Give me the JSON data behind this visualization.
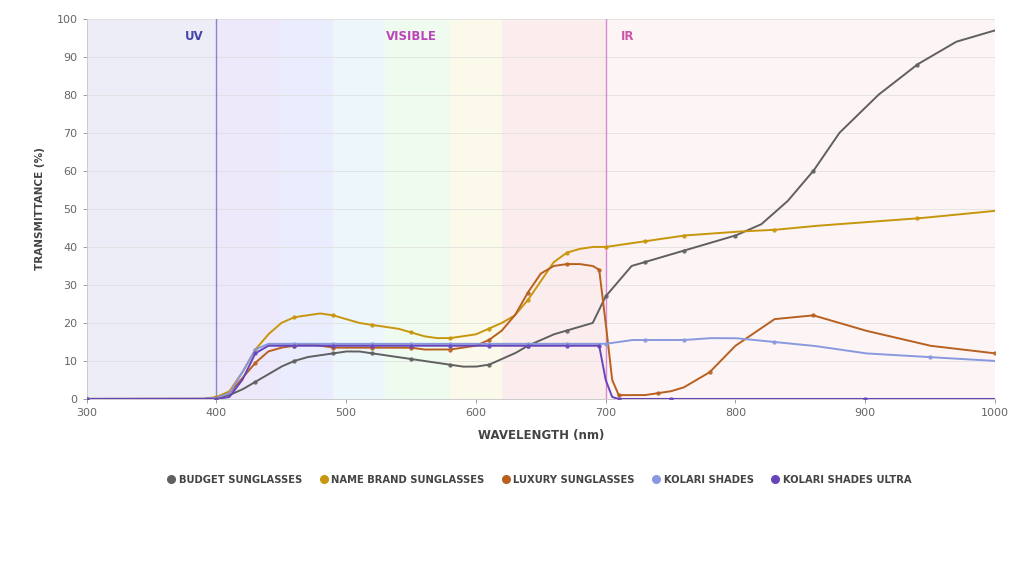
{
  "title": "",
  "xlabel": "WAVELENGTH (nm)",
  "ylabel": "TRANSMITTANCE (%)",
  "xlim": [
    300,
    1000
  ],
  "ylim": [
    0,
    100
  ],
  "uv_line_x": 400,
  "vis_line_x": 700,
  "uv_label": "UV",
  "vis_label": "VISIBLE",
  "ir_label": "IR",
  "uv_label_color": "#4444aa",
  "vis_label_color": "#bb44bb",
  "ir_label_color": "#cc55aa",
  "background_color": "#ffffff",
  "series": {
    "budget": {
      "label": "BUDGET SUNGLASSES",
      "color": "#606060",
      "x": [
        300,
        370,
        390,
        400,
        410,
        420,
        430,
        440,
        450,
        460,
        470,
        480,
        490,
        500,
        510,
        520,
        530,
        540,
        550,
        560,
        570,
        580,
        590,
        600,
        610,
        620,
        630,
        640,
        650,
        660,
        670,
        680,
        690,
        700,
        710,
        720,
        730,
        740,
        750,
        760,
        770,
        780,
        800,
        820,
        840,
        860,
        880,
        910,
        940,
        970,
        1000
      ],
      "y": [
        0,
        0,
        0,
        0.3,
        1.0,
        2.5,
        4.5,
        6.5,
        8.5,
        10,
        11,
        11.5,
        12,
        12.5,
        12.5,
        12,
        11.5,
        11,
        10.5,
        10,
        9.5,
        9,
        8.5,
        8.5,
        9,
        10.5,
        12,
        14,
        15.5,
        17,
        18,
        19,
        20,
        27,
        31,
        35,
        36,
        37,
        38,
        39,
        40,
        41,
        43,
        46,
        52,
        60,
        70,
        80,
        88,
        94,
        97
      ]
    },
    "name_brand": {
      "label": "NAME BRAND SUNGLASSES",
      "color": "#c8960c",
      "x": [
        300,
        370,
        390,
        400,
        410,
        420,
        430,
        440,
        450,
        460,
        470,
        480,
        490,
        500,
        510,
        520,
        530,
        540,
        550,
        560,
        570,
        580,
        590,
        600,
        610,
        620,
        630,
        640,
        650,
        660,
        670,
        680,
        690,
        700,
        710,
        720,
        730,
        740,
        750,
        760,
        780,
        800,
        830,
        860,
        900,
        940,
        970,
        1000
      ],
      "y": [
        0,
        0,
        0,
        0.5,
        2,
        7,
        13,
        17,
        20,
        21.5,
        22,
        22.5,
        22,
        21,
        20,
        19.5,
        19,
        18.5,
        17.5,
        16.5,
        16,
        16,
        16.5,
        17,
        18.5,
        20,
        22,
        26,
        31,
        36,
        38.5,
        39.5,
        40,
        40,
        40.5,
        41,
        41.5,
        42,
        42.5,
        43,
        43.5,
        44,
        44.5,
        45.5,
        46.5,
        47.5,
        48.5,
        49.5
      ]
    },
    "luxury": {
      "label": "LUXURY SUNGLASSES",
      "color": "#b86020",
      "x": [
        300,
        370,
        390,
        400,
        410,
        420,
        430,
        440,
        450,
        460,
        470,
        480,
        490,
        500,
        510,
        520,
        530,
        540,
        550,
        560,
        570,
        580,
        590,
        600,
        610,
        620,
        630,
        640,
        650,
        660,
        670,
        680,
        690,
        695,
        700,
        705,
        710,
        720,
        730,
        740,
        750,
        760,
        780,
        800,
        830,
        860,
        900,
        950,
        1000
      ],
      "y": [
        0,
        0,
        0,
        0.3,
        1.5,
        5.5,
        9.5,
        12.5,
        13.5,
        14,
        14.5,
        14,
        13.5,
        13.5,
        13.5,
        13.5,
        13.5,
        13.5,
        13.5,
        13,
        13,
        13,
        13.5,
        14,
        15.5,
        18,
        22,
        28,
        33,
        35,
        35.5,
        35.5,
        35,
        34,
        20,
        5,
        1,
        1,
        1,
        1.5,
        2,
        3,
        7,
        14,
        21,
        22,
        18,
        14,
        12
      ]
    },
    "kolari_shades": {
      "label": "KOLARI SHADES",
      "color": "#8899dd",
      "x": [
        300,
        370,
        390,
        400,
        410,
        420,
        430,
        440,
        450,
        460,
        470,
        480,
        490,
        500,
        510,
        520,
        530,
        540,
        550,
        560,
        570,
        580,
        590,
        600,
        610,
        620,
        630,
        640,
        650,
        660,
        670,
        680,
        690,
        700,
        710,
        720,
        730,
        740,
        750,
        760,
        780,
        800,
        830,
        860,
        900,
        950,
        1000
      ],
      "y": [
        0,
        0,
        0,
        0.3,
        1.5,
        7,
        13,
        14.5,
        14.5,
        14.5,
        14.5,
        14.5,
        14.5,
        14.5,
        14.5,
        14.5,
        14.5,
        14.5,
        14.5,
        14.5,
        14.5,
        14.5,
        14.5,
        14.5,
        14.5,
        14.5,
        14.5,
        14.5,
        14.5,
        14.5,
        14.5,
        14.5,
        14.5,
        14.5,
        15,
        15.5,
        15.5,
        15.5,
        15.5,
        15.5,
        16,
        16,
        15,
        14,
        12,
        11,
        10
      ]
    },
    "kolari_ultra": {
      "label": "KOLARI SHADES ULTRA",
      "color": "#6644bb",
      "x": [
        300,
        370,
        390,
        400,
        410,
        420,
        430,
        440,
        450,
        460,
        470,
        480,
        490,
        500,
        510,
        520,
        530,
        540,
        550,
        560,
        570,
        580,
        590,
        600,
        610,
        620,
        630,
        640,
        650,
        660,
        670,
        680,
        690,
        695,
        700,
        705,
        710,
        720,
        730,
        750,
        800,
        850,
        900,
        950,
        1000
      ],
      "y": [
        0,
        0,
        0,
        0,
        0.5,
        5,
        12,
        14,
        14,
        14,
        14,
        14,
        14,
        14,
        14,
        14,
        14,
        14,
        14,
        14,
        14,
        14,
        14,
        14,
        14,
        14,
        14,
        14,
        14,
        14,
        14,
        14,
        14,
        14,
        5,
        0.5,
        0,
        0,
        0,
        0,
        0,
        0,
        0,
        0,
        0
      ]
    }
  },
  "spectrum_regions": [
    {
      "xmin": 300,
      "xmax": 400,
      "color": "#d8d8ee",
      "alpha": 0.45
    },
    {
      "xmin": 400,
      "xmax": 450,
      "color": "#c8b8f0",
      "alpha": 0.3
    },
    {
      "xmin": 450,
      "xmax": 490,
      "color": "#a8b8f8",
      "alpha": 0.25
    },
    {
      "xmin": 490,
      "xmax": 530,
      "color": "#a8d8ee",
      "alpha": 0.2
    },
    {
      "xmin": 530,
      "xmax": 580,
      "color": "#b8eeb8",
      "alpha": 0.2
    },
    {
      "xmin": 580,
      "xmax": 620,
      "color": "#f0e8a0",
      "alpha": 0.22
    },
    {
      "xmin": 620,
      "xmax": 700,
      "color": "#f0b8b8",
      "alpha": 0.25
    },
    {
      "xmin": 700,
      "xmax": 1000,
      "color": "#f0c8d0",
      "alpha": 0.2
    }
  ]
}
